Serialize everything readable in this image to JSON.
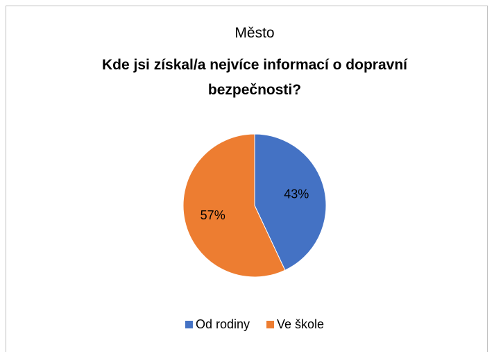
{
  "chart_data": {
    "type": "pie",
    "title": "Město",
    "subtitle": "Kde jsi získal/a nejvíce informací o dopravní bezpečnosti?",
    "categories": [
      "Od rodiny",
      "Ve škole"
    ],
    "values": [
      43,
      57
    ],
    "value_labels": [
      "43%",
      "57%"
    ],
    "colors": [
      "#4472c4",
      "#ed7d31"
    ],
    "legend": "bottom"
  }
}
